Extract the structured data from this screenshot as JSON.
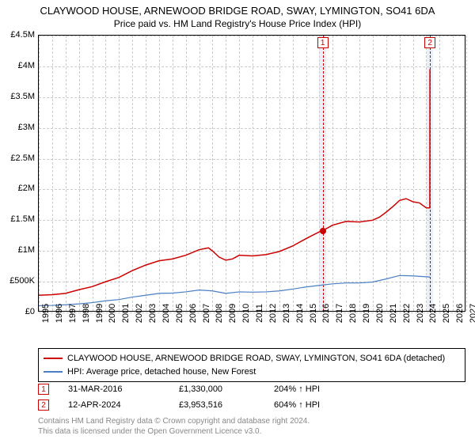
{
  "title": "CLAYWOOD HOUSE, ARNEWOOD BRIDGE ROAD, SWAY, LYMINGTON, SO41 6DA",
  "subtitle": "Price paid vs. HM Land Registry's House Price Index (HPI)",
  "chart": {
    "type": "line",
    "x_axis": {
      "min": 1995,
      "max": 2027,
      "ticks": [
        1995,
        1996,
        1997,
        1998,
        1999,
        2000,
        2001,
        2002,
        2003,
        2004,
        2005,
        2006,
        2007,
        2008,
        2009,
        2010,
        2011,
        2012,
        2013,
        2014,
        2015,
        2016,
        2017,
        2018,
        2019,
        2020,
        2021,
        2022,
        2023,
        2024,
        2025,
        2026,
        2027
      ],
      "label_fontsize": 11
    },
    "y_axis": {
      "min": 0,
      "max": 4500000,
      "ticks": [
        {
          "v": 0,
          "label": "£0"
        },
        {
          "v": 500000,
          "label": "£500K"
        },
        {
          "v": 1000000,
          "label": "£1M"
        },
        {
          "v": 1500000,
          "label": "£1.5M"
        },
        {
          "v": 2000000,
          "label": "£2M"
        },
        {
          "v": 2500000,
          "label": "£2.5M"
        },
        {
          "v": 3000000,
          "label": "£3M"
        },
        {
          "v": 3500000,
          "label": "£3.5M"
        },
        {
          "v": 4000000,
          "label": "£4M"
        },
        {
          "v": 4500000,
          "label": "£4.5M"
        }
      ],
      "label_fontsize": 11
    },
    "grid_color": "#cccccc",
    "background_color": "#ffffff",
    "series": [
      {
        "name": "CLAYWOOD HOUSE, ARNEWOOD BRIDGE ROAD, SWAY, LYMINGTON, SO41 6DA (detached)",
        "color": "#cc0000",
        "width": 1.5,
        "data": [
          [
            1995.0,
            280000
          ],
          [
            1996.0,
            290000
          ],
          [
            1997.0,
            310000
          ],
          [
            1998.0,
            370000
          ],
          [
            1999.0,
            420000
          ],
          [
            2000.0,
            500000
          ],
          [
            2001.0,
            570000
          ],
          [
            2002.0,
            680000
          ],
          [
            2003.0,
            770000
          ],
          [
            2004.0,
            840000
          ],
          [
            2005.0,
            870000
          ],
          [
            2006.0,
            930000
          ],
          [
            2007.0,
            1020000
          ],
          [
            2007.7,
            1050000
          ],
          [
            2008.0,
            1000000
          ],
          [
            2008.5,
            900000
          ],
          [
            2009.0,
            850000
          ],
          [
            2009.5,
            870000
          ],
          [
            2010.0,
            930000
          ],
          [
            2011.0,
            920000
          ],
          [
            2012.0,
            940000
          ],
          [
            2013.0,
            990000
          ],
          [
            2014.0,
            1080000
          ],
          [
            2015.0,
            1200000
          ],
          [
            2016.0,
            1310000
          ],
          [
            2016.25,
            1330000
          ],
          [
            2017.0,
            1420000
          ],
          [
            2018.0,
            1480000
          ],
          [
            2019.0,
            1470000
          ],
          [
            2020.0,
            1500000
          ],
          [
            2020.5,
            1550000
          ],
          [
            2021.0,
            1630000
          ],
          [
            2021.5,
            1720000
          ],
          [
            2022.0,
            1820000
          ],
          [
            2022.5,
            1850000
          ],
          [
            2023.0,
            1800000
          ],
          [
            2023.5,
            1780000
          ],
          [
            2024.0,
            1700000
          ],
          [
            2024.27,
            1700000
          ],
          [
            2024.28,
            3953516
          ]
        ]
      },
      {
        "name": "HPI: Average price, detached house, New Forest",
        "color": "#4a7fc4",
        "width": 1.2,
        "data": [
          [
            1995.0,
            110000
          ],
          [
            1996.0,
            115000
          ],
          [
            1997.0,
            125000
          ],
          [
            1998.0,
            140000
          ],
          [
            1999.0,
            160000
          ],
          [
            2000.0,
            190000
          ],
          [
            2001.0,
            210000
          ],
          [
            2002.0,
            250000
          ],
          [
            2003.0,
            280000
          ],
          [
            2004.0,
            310000
          ],
          [
            2005.0,
            315000
          ],
          [
            2006.0,
            335000
          ],
          [
            2007.0,
            365000
          ],
          [
            2008.0,
            350000
          ],
          [
            2009.0,
            310000
          ],
          [
            2010.0,
            335000
          ],
          [
            2011.0,
            330000
          ],
          [
            2012.0,
            335000
          ],
          [
            2013.0,
            350000
          ],
          [
            2014.0,
            380000
          ],
          [
            2015.0,
            415000
          ],
          [
            2016.0,
            440000
          ],
          [
            2017.0,
            465000
          ],
          [
            2018.0,
            480000
          ],
          [
            2019.0,
            480000
          ],
          [
            2020.0,
            495000
          ],
          [
            2021.0,
            545000
          ],
          [
            2022.0,
            600000
          ],
          [
            2023.0,
            595000
          ],
          [
            2024.0,
            580000
          ],
          [
            2024.28,
            575000
          ]
        ]
      }
    ],
    "sale_points": [
      {
        "x": 2016.25,
        "y": 1330000,
        "color": "#cc0000"
      }
    ],
    "markers": [
      {
        "tag": "1",
        "x": 2016.25,
        "band_width_years": 0.5
      },
      {
        "tag": "2",
        "x": 2024.28,
        "band_width_years": 0.5
      }
    ]
  },
  "legend": {
    "items": [
      {
        "color": "#cc0000",
        "label": "CLAYWOOD HOUSE, ARNEWOOD BRIDGE ROAD, SWAY, LYMINGTON, SO41 6DA (detached)"
      },
      {
        "color": "#4a7fc4",
        "label": "HPI: Average price, detached house, New Forest"
      }
    ]
  },
  "sales": [
    {
      "tag": "1",
      "date": "31-MAR-2016",
      "price": "£1,330,000",
      "hpi": "204% ↑ HPI"
    },
    {
      "tag": "2",
      "date": "12-APR-2024",
      "price": "£3,953,516",
      "hpi": "604% ↑ HPI"
    }
  ],
  "footer": {
    "line1": "Contains HM Land Registry data © Crown copyright and database right 2024.",
    "line2": "This data is licensed under the Open Government Licence v3.0."
  }
}
